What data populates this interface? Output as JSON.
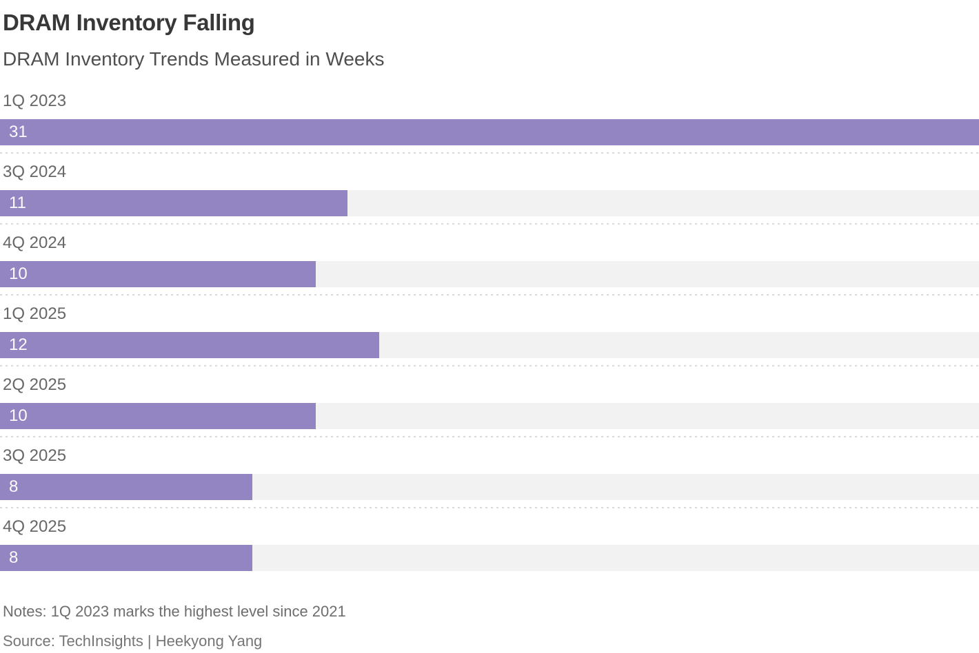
{
  "header": {
    "title": "DRAM Inventory Falling",
    "subtitle": "DRAM Inventory Trends Measured in Weeks"
  },
  "chart_data": {
    "type": "bar",
    "orientation": "horizontal",
    "title": "DRAM Inventory Falling",
    "subtitle": "DRAM Inventory Trends Measured in Weeks",
    "categories": [
      "1Q 2023",
      "3Q 2024",
      "4Q 2024",
      "1Q 2025",
      "2Q 2025",
      "3Q 2025",
      "4Q 2025"
    ],
    "values": [
      31,
      11,
      10,
      12,
      10,
      8,
      8
    ],
    "value_unit": "weeks",
    "xlim": [
      0,
      31
    ],
    "grid": false,
    "legend": false,
    "value_labels": "inside-left",
    "bar_color": "#9385c2",
    "track_color": "#f2f2f2",
    "separator_color": "#d9d9d9"
  },
  "rows": [
    {
      "label": "1Q 2023",
      "value": "31"
    },
    {
      "label": "3Q 2024",
      "value": "11"
    },
    {
      "label": "4Q 2024",
      "value": "10"
    },
    {
      "label": "1Q 2025",
      "value": "12"
    },
    {
      "label": "2Q 2025",
      "value": "10"
    },
    {
      "label": "3Q 2025",
      "value": "8"
    },
    {
      "label": "4Q 2025",
      "value": "8"
    }
  ],
  "footer": {
    "notes": "Notes: 1Q 2023 marks the highest level since 2021",
    "source": "Source: TechInsights | Heekyong Yang"
  }
}
